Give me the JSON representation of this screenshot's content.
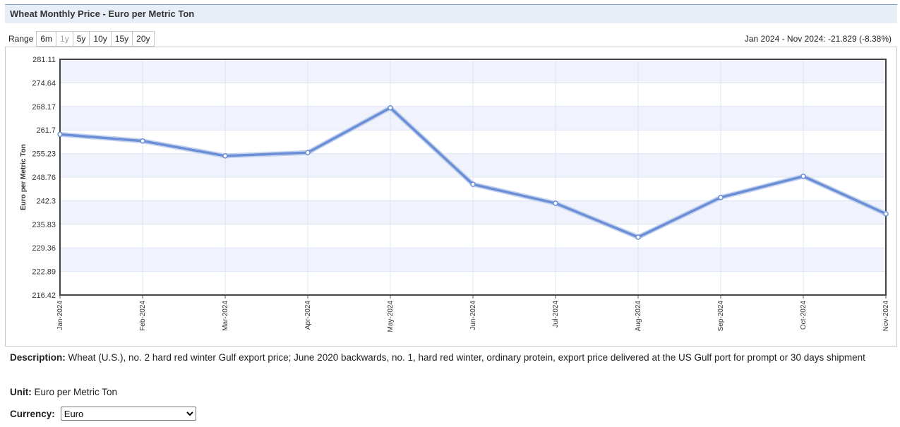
{
  "title": "Wheat Monthly Price - Euro per Metric Ton",
  "range": {
    "label": "Range",
    "buttons": [
      "6m",
      "1y",
      "5y",
      "10y",
      "15y",
      "20y"
    ]
  },
  "change_text": "Jan 2024 - Nov 2024: -21.829 (-8.38%)",
  "description": {
    "label": "Description:",
    "text": "Wheat (U.S.), no. 2 hard red winter Gulf export price; June 2020 backwards, no. 1, hard red winter, ordinary protein, export price delivered at the US Gulf port for prompt or 30 days shipment"
  },
  "unit": {
    "label": "Unit:",
    "text": "Euro per Metric Ton"
  },
  "currency": {
    "label": "Currency:",
    "selected": "Euro"
  },
  "chart_data": {
    "type": "line",
    "title": "",
    "xlabel": "",
    "ylabel": "Euro per Metric Ton",
    "x": [
      "Jan-2024",
      "Feb-2024",
      "Mar-2024",
      "Apr-2024",
      "May-2024",
      "Jun-2024",
      "Jul-2024",
      "Aug-2024",
      "Sep-2024",
      "Oct-2024",
      "Nov-2024"
    ],
    "series": [
      {
        "values": [
          260.5,
          258.7,
          254.6,
          255.5,
          267.8,
          246.8,
          241.6,
          232.3,
          243.2,
          249.0,
          238.7
        ]
      }
    ],
    "ylim": [
      216.42,
      281.11
    ],
    "yticks": [
      "281.11",
      "274.64",
      "268.17",
      "261.7",
      "255.23",
      "248.76",
      "242.3",
      "235.83",
      "229.36",
      "222.89",
      "216.42"
    ],
    "grid": true,
    "line_color": "#6b8fd6",
    "band_color": "#f0f3fb"
  }
}
